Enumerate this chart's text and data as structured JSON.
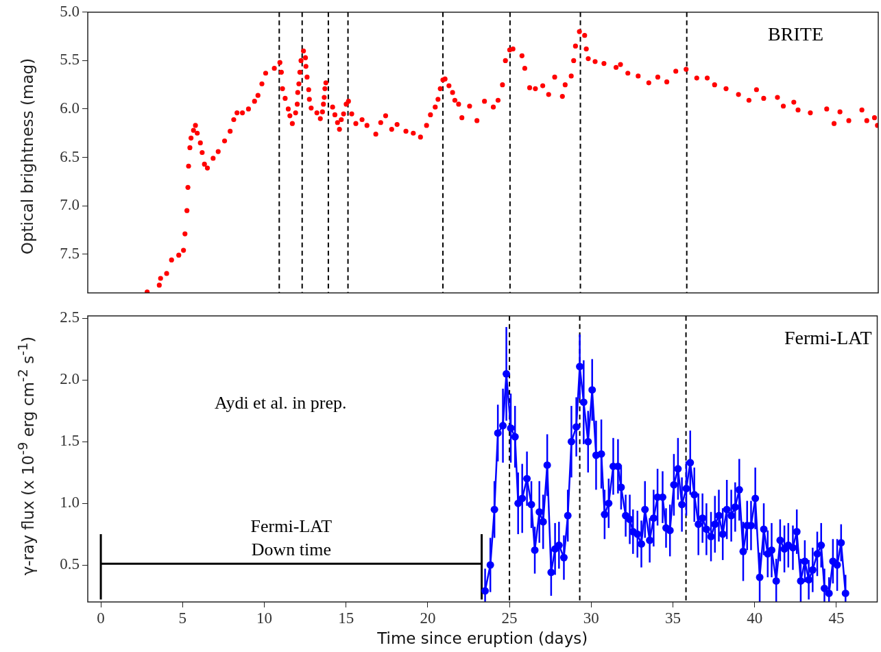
{
  "chart_data": [
    {
      "type": "scatter",
      "ylabel": "Optical brightness (mag)",
      "color": "#ff0000",
      "marker": "circle",
      "x": [
        2.83,
        3.57,
        3.65,
        4.02,
        4.32,
        4.76,
        5.05,
        5.14,
        5.26,
        5.32,
        5.36,
        5.44,
        5.51,
        5.66,
        5.78,
        5.89,
        6.08,
        6.19,
        6.33,
        6.51,
        6.86,
        7.17,
        7.56,
        7.9,
        8.12,
        8.32,
        8.65,
        9.02,
        9.39,
        9.6,
        9.84,
        10.07,
        10.6,
        10.94,
        11.03,
        11.1,
        11.26,
        11.45,
        11.55,
        11.7,
        11.9,
        12.0,
        12.03,
        12.1,
        12.16,
        12.23,
        12.38,
        12.5,
        12.53,
        12.6,
        12.7,
        12.74,
        12.85,
        13.2,
        13.41,
        13.54,
        13.6,
        13.65,
        13.69,
        13.75,
        14.16,
        14.3,
        14.46,
        14.58,
        14.69,
        14.83,
        14.99,
        15.13,
        15.33,
        15.58,
        15.96,
        16.26,
        16.8,
        17.1,
        17.4,
        17.77,
        18.1,
        18.64,
        19.09,
        19.53,
        19.9,
        20.14,
        20.43,
        20.6,
        20.74,
        20.9,
        21.03,
        21.27,
        21.49,
        21.63,
        21.86,
        22.06,
        22.53,
        22.98,
        23.44,
        23.98,
        24.27,
        24.54,
        24.72,
        24.98,
        25.18,
        25.73,
        25.9,
        26.2,
        26.55,
        27.0,
        27.36,
        27.73,
        28.2,
        28.37,
        28.74,
        28.89,
        29.0,
        29.24,
        29.56,
        29.66,
        29.78,
        30.2,
        30.74,
        31.48,
        31.75,
        32.2,
        32.83,
        33.48,
        34.03,
        34.58,
        35.13,
        35.76,
        36.41,
        37.05,
        37.5,
        38.2,
        38.96,
        39.6,
        40.06,
        40.5,
        41.34,
        41.7,
        42.34,
        42.6,
        43.35,
        44.35,
        44.8,
        45.16,
        45.7,
        46.5,
        46.8,
        47.27,
        47.45
      ],
      "values": [
        7.89,
        7.82,
        7.75,
        7.7,
        7.56,
        7.51,
        7.46,
        7.29,
        7.05,
        6.81,
        6.59,
        6.4,
        6.3,
        6.22,
        6.17,
        6.25,
        6.35,
        6.45,
        6.57,
        6.61,
        6.51,
        6.44,
        6.33,
        6.23,
        6.11,
        6.04,
        6.04,
        6.0,
        5.92,
        5.86,
        5.74,
        5.63,
        5.58,
        5.52,
        5.62,
        5.79,
        5.89,
        6.0,
        6.07,
        6.15,
        6.04,
        5.95,
        5.83,
        5.74,
        5.62,
        5.5,
        5.4,
        5.47,
        5.56,
        5.67,
        5.8,
        5.9,
        5.99,
        6.04,
        6.1,
        6.03,
        5.95,
        5.88,
        5.79,
        5.73,
        5.98,
        6.06,
        6.14,
        6.21,
        6.11,
        6.05,
        5.95,
        5.92,
        6.05,
        6.15,
        6.11,
        6.17,
        6.26,
        6.14,
        6.07,
        6.21,
        6.16,
        6.23,
        6.25,
        6.29,
        6.17,
        6.06,
        5.98,
        5.9,
        5.79,
        5.7,
        5.69,
        5.76,
        5.83,
        5.91,
        5.95,
        6.09,
        5.97,
        6.12,
        5.92,
        5.98,
        5.91,
        5.75,
        5.5,
        5.39,
        5.38,
        5.45,
        5.58,
        5.78,
        5.79,
        5.76,
        5.85,
        5.67,
        5.87,
        5.75,
        5.66,
        5.5,
        5.35,
        5.2,
        5.24,
        5.38,
        5.48,
        5.51,
        5.53,
        5.57,
        5.54,
        5.63,
        5.66,
        5.73,
        5.67,
        5.72,
        5.61,
        5.59,
        5.68,
        5.68,
        5.75,
        5.79,
        5.85,
        5.91,
        5.8,
        5.89,
        5.88,
        5.97,
        5.93,
        6.01,
        6.04,
        6.0,
        6.15,
        6.03,
        6.12,
        6.01,
        6.12,
        6.09,
        6.17
      ],
      "xlim": [
        -0.8,
        47.5
      ],
      "ylim": [
        7.9,
        5.0
      ],
      "yticks": [
        {
          "value": 5.0,
          "label": "5.0"
        },
        {
          "value": 5.5,
          "label": "5.5"
        },
        {
          "value": 6.0,
          "label": "6.0"
        },
        {
          "value": 6.5,
          "label": "6.5"
        },
        {
          "value": 7.0,
          "label": "7.0"
        },
        {
          "value": 7.5,
          "label": "7.5"
        }
      ],
      "tick_labels": "y",
      "ref_lines": [
        {
          "axis": "x",
          "value": 10.9,
          "color": "#000000",
          "line_style": "dashed"
        },
        {
          "axis": "x",
          "value": 12.3,
          "color": "#000000",
          "line_style": "dashed"
        },
        {
          "axis": "x",
          "value": 13.9,
          "color": "#000000",
          "line_style": "dashed"
        },
        {
          "axis": "x",
          "value": 15.1,
          "color": "#000000",
          "line_style": "dashed"
        },
        {
          "axis": "x",
          "value": 20.9,
          "color": "#000000",
          "line_style": "dashed"
        },
        {
          "axis": "x",
          "value": 25.0,
          "color": "#000000",
          "line_style": "dashed"
        },
        {
          "axis": "x",
          "value": 29.3,
          "color": "#000000",
          "line_style": "dashed"
        },
        {
          "axis": "x",
          "value": 35.8,
          "color": "#000000",
          "line_style": "dashed"
        }
      ],
      "annotations": [
        "BRITE"
      ]
    },
    {
      "type": "line",
      "xlabel": "Time since eruption (days)",
      "ylabel": "γ-ray flux (x 10$^{-9}$ erg cm$^{-2}$ s$^{-1}$)",
      "series": [
        {
          "color": "#0000ff",
          "marker": "circle",
          "x": [
            23.51,
            23.83,
            24.08,
            24.29,
            24.6,
            24.81,
            25.08,
            25.34,
            25.53,
            25.78,
            26.07,
            26.34,
            26.55,
            26.83,
            27.06,
            27.31,
            27.55,
            27.79,
            28.03,
            28.33,
            28.57,
            28.79,
            29.09,
            29.3,
            29.54,
            29.81,
            30.06,
            30.3,
            30.62,
            30.82,
            31.07,
            31.35,
            31.64,
            31.83,
            32.11,
            32.36,
            32.56,
            32.83,
            33.07,
            33.29,
            33.58,
            33.82,
            34.06,
            34.37,
            34.58,
            34.82,
            35.06,
            35.31,
            35.55,
            35.82,
            36.06,
            36.31,
            36.56,
            36.81,
            37.05,
            37.33,
            37.57,
            37.81,
            38.05,
            38.3,
            38.57,
            38.81,
            39.06,
            39.3,
            39.54,
            39.78,
            40.04,
            40.31,
            40.56,
            40.8,
            41.04,
            41.32,
            41.56,
            41.82,
            42.06,
            42.34,
            42.58,
            42.82,
            43.07,
            43.31,
            43.55,
            43.83,
            44.07,
            44.27,
            44.55,
            44.79,
            45.05,
            45.29,
            45.56
          ],
          "values": [
            0.29,
            0.5,
            0.95,
            1.57,
            1.63,
            2.05,
            1.61,
            1.54,
            1.0,
            1.04,
            1.2,
            0.99,
            0.62,
            0.93,
            0.85,
            1.31,
            0.44,
            0.63,
            0.66,
            0.56,
            0.9,
            1.5,
            1.62,
            2.11,
            1.82,
            1.5,
            1.92,
            1.39,
            1.4,
            0.91,
            1.0,
            1.3,
            1.3,
            1.13,
            0.9,
            0.87,
            0.77,
            0.75,
            0.67,
            0.95,
            0.7,
            0.88,
            1.05,
            1.05,
            0.8,
            0.78,
            1.15,
            1.28,
            0.99,
            1.12,
            1.33,
            1.07,
            0.83,
            0.88,
            0.79,
            0.73,
            0.83,
            0.9,
            0.75,
            0.95,
            0.9,
            0.97,
            1.11,
            0.61,
            0.82,
            0.82,
            1.04,
            0.4,
            0.79,
            0.59,
            0.62,
            0.37,
            0.7,
            0.63,
            0.66,
            0.64,
            0.77,
            0.37,
            0.53,
            0.38,
            0.46,
            0.59,
            0.66,
            0.31,
            0.27,
            0.53,
            0.5,
            0.68,
            0.27
          ],
          "errors": [
            [
              0.2,
              0.47
            ],
            0.22,
            0.23,
            0.23,
            0.3,
            0.38,
            0.28,
            0.25,
            0.25,
            0.28,
            0.22,
            0.19,
            0.19,
            0.25,
            0.22,
            0.25,
            0.19,
            0.21,
            0.19,
            0.18,
            0.21,
            0.29,
            0.24,
            0.26,
            0.34,
            0.25,
            0.25,
            0.28,
            0.28,
            0.2,
            0.2,
            0.23,
            0.22,
            0.18,
            0.17,
            0.2,
            0.18,
            0.19,
            0.19,
            0.23,
            0.18,
            0.23,
            0.23,
            0.21,
            0.16,
            0.21,
            0.25,
            0.25,
            0.22,
            0.22,
            0.26,
            0.22,
            0.25,
            0.2,
            0.21,
            0.2,
            0.23,
            0.21,
            0.21,
            0.24,
            0.21,
            0.2,
            0.25,
            0.24,
            0.2,
            0.2,
            0.25,
            [
              0.2,
              0.6
            ],
            0.21,
            0.19,
            0.22,
            [
              0.2,
              0.55
            ],
            0.17,
            0.19,
            0.18,
            0.18,
            0.18,
            [
              0.2,
              0.55
            ],
            0.17,
            0.16,
            0.18,
            0.18,
            0.18,
            [
              0.2,
              0.47
            ],
            [
              0.2,
              0.4
            ],
            0.18,
            0.21,
            0.15,
            [
              0.2,
              0.42
            ]
          ]
        },
        {
          "color": "#000000",
          "marker": "none",
          "x": [
            0,
            23.3
          ],
          "values": [
            0.51,
            0.51
          ],
          "errors": [
            [
              0.22,
              0.75
            ],
            [
              0.22,
              0.75
            ]
          ]
        }
      ],
      "xlim": [
        -0.8,
        47.5
      ],
      "ylim": [
        0.2,
        2.52
      ],
      "xticks": [
        0,
        5,
        10,
        15,
        20,
        25,
        30,
        35,
        40,
        45
      ],
      "yticks": [
        {
          "value": 0.5,
          "label": "0.5"
        },
        {
          "value": 1.0,
          "label": "1.0"
        },
        {
          "value": 1.5,
          "label": "1.5"
        },
        {
          "value": 2.0,
          "label": "2.0"
        },
        {
          "value": 2.5,
          "label": "2.5"
        }
      ],
      "ref_lines": [
        {
          "axis": "x",
          "value": 25.0,
          "color": "#000000",
          "line_style": "dashed"
        },
        {
          "axis": "x",
          "value": 29.3,
          "color": "#000000",
          "line_style": "dashed"
        },
        {
          "axis": "x",
          "value": 35.8,
          "color": "#000000",
          "line_style": "dashed"
        }
      ],
      "annotations": [
        "Fermi-LAT",
        "Aydi et al. in prep.",
        {
          "text": "Fermi-LAT Down time",
          "x": 11.65,
          "y": 0.51
        }
      ]
    }
  ]
}
